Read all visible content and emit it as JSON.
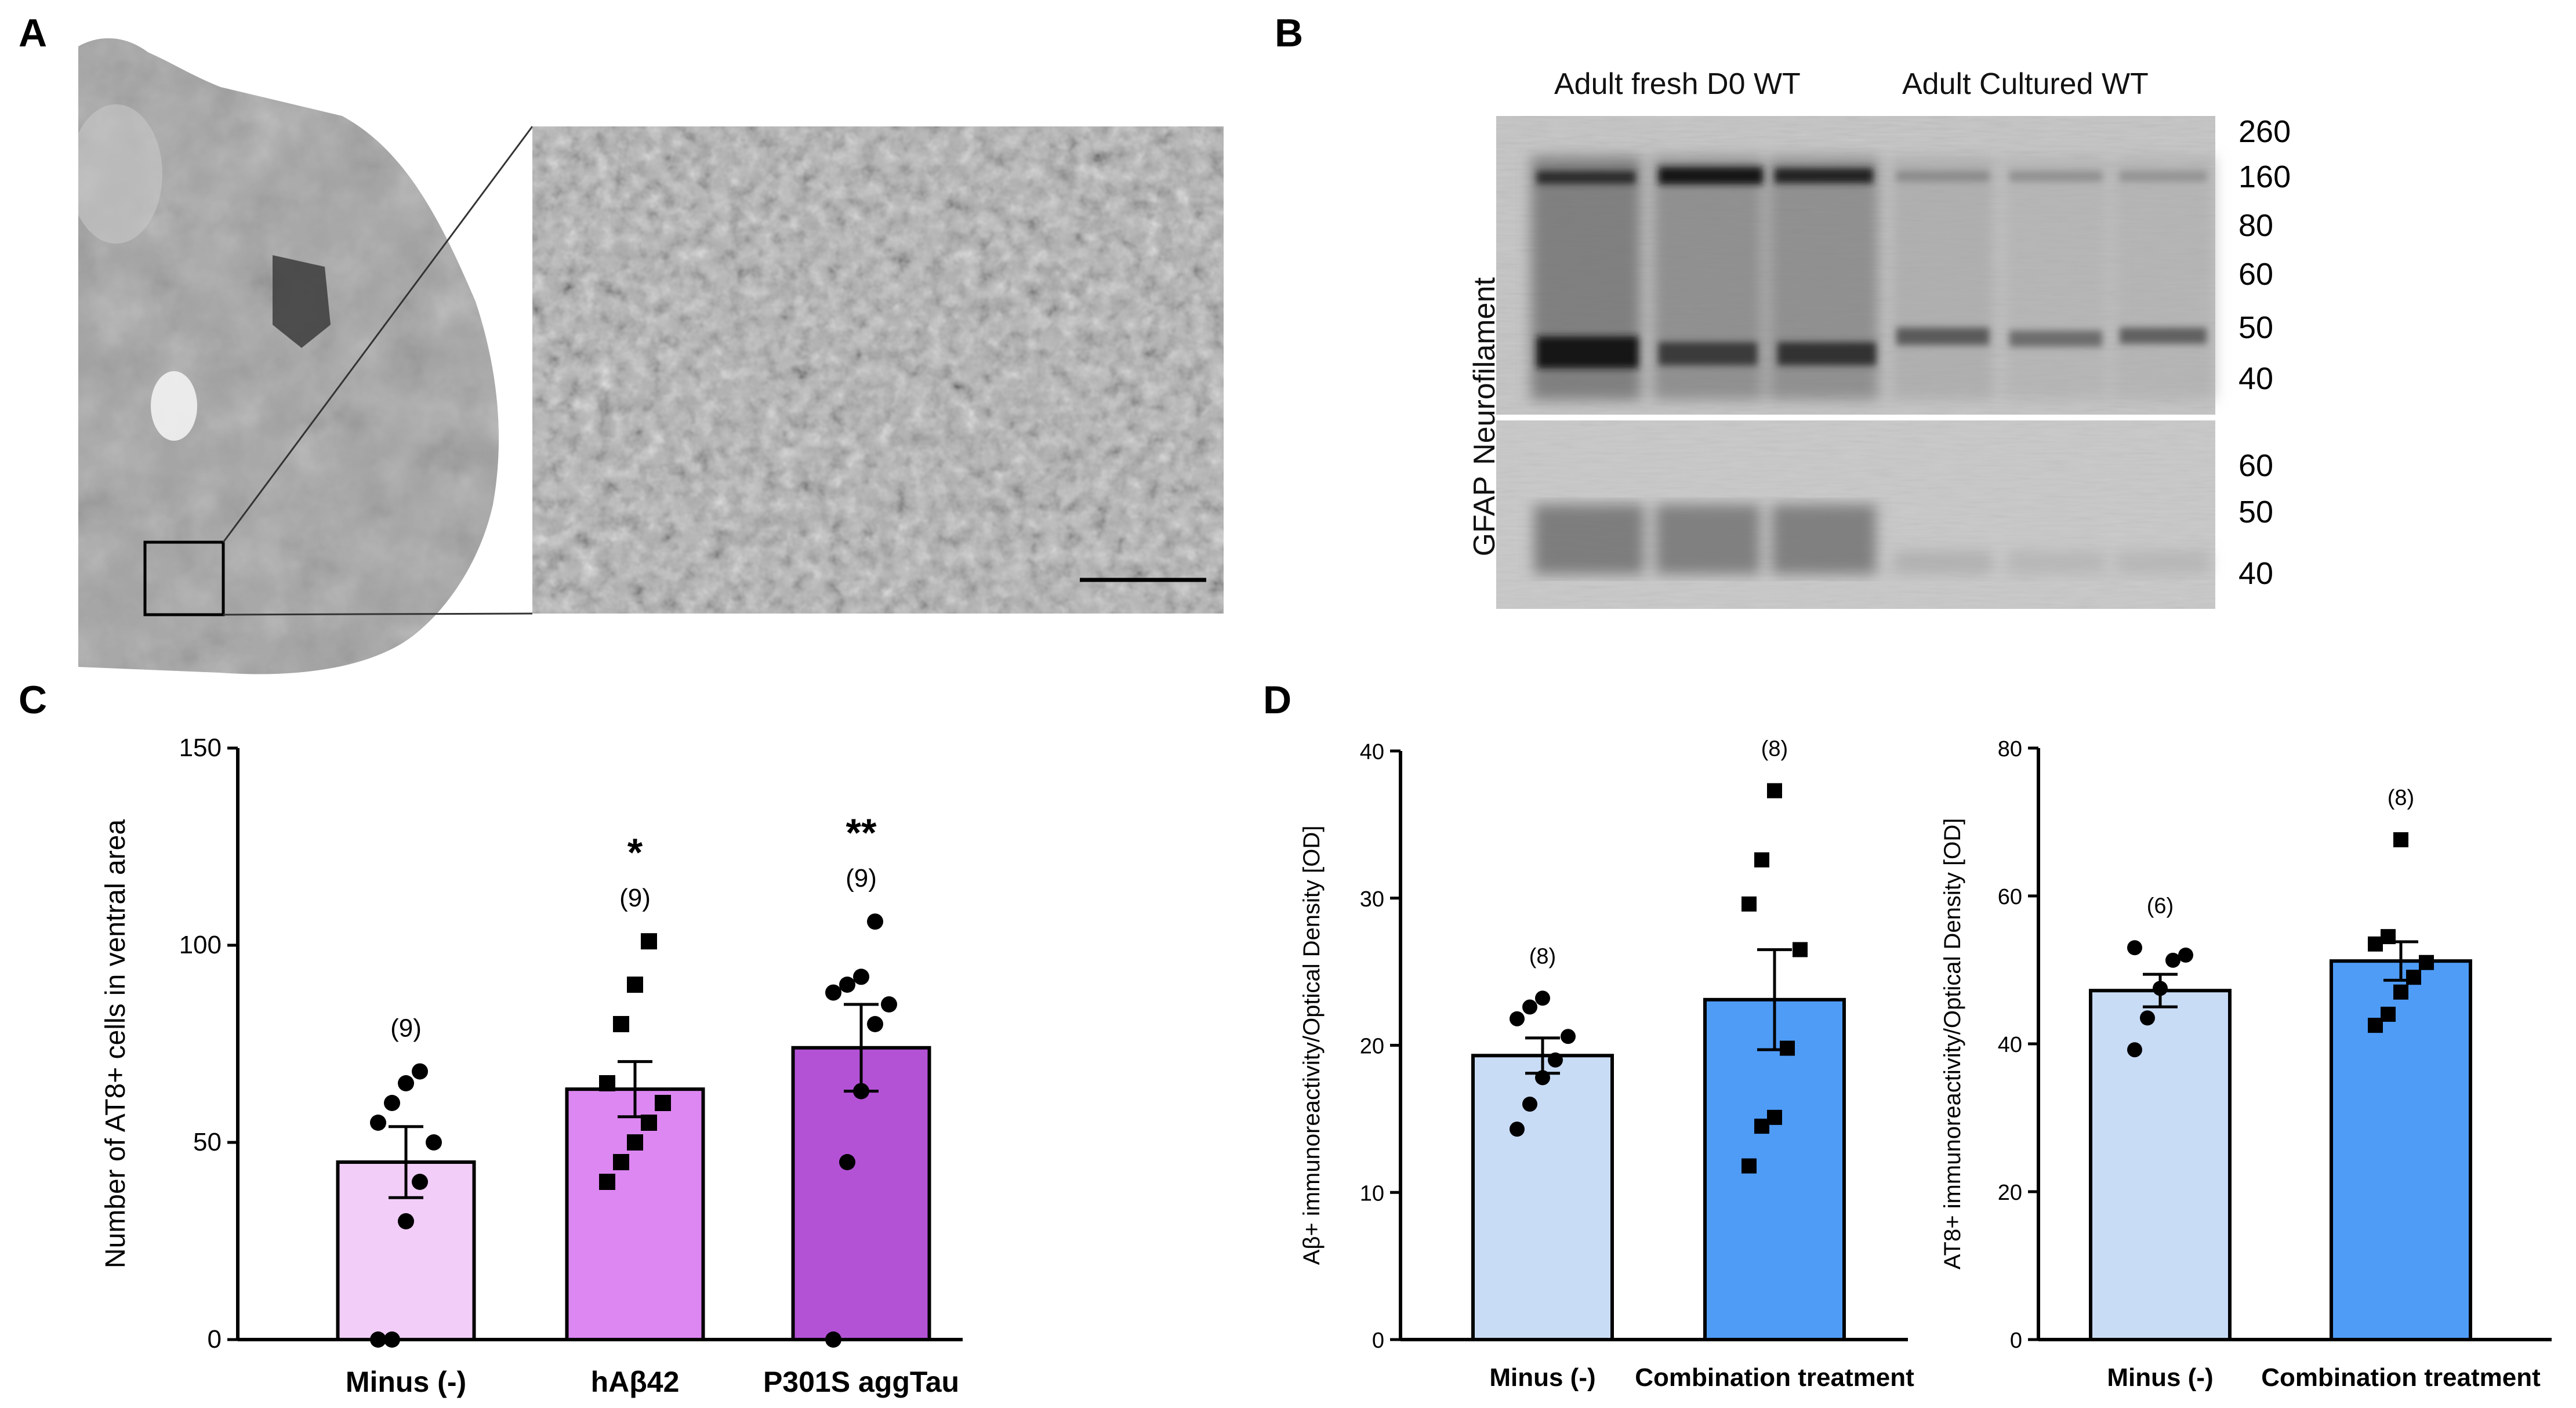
{
  "panel_labels": {
    "a": "A",
    "b": "B",
    "c": "C",
    "d": "D"
  },
  "panel_b": {
    "group_labels": [
      "Adult fresh D0 WT",
      "Adult Cultured WT"
    ],
    "blot_labels": [
      "Neurofilament",
      "GFAP"
    ],
    "neurofilament_markers": [
      "260",
      "160",
      "80",
      "60",
      "50",
      "40"
    ],
    "gfap_markers": [
      "60",
      "50",
      "40"
    ]
  },
  "chart_data": [
    {
      "id": "C",
      "type": "bar",
      "categories": [
        "Minus (-)",
        "hAβ42",
        "P301S aggTau"
      ],
      "values": [
        45,
        63.5,
        74
      ],
      "sem": [
        9,
        7,
        11
      ],
      "ylim": [
        0,
        150
      ],
      "yticks": [
        "0",
        "50",
        "100",
        "150"
      ],
      "ylabel": "Number of AT8+ cells in ventral area",
      "n_labels": [
        "(9)",
        "(9)",
        "(9)"
      ],
      "significance": [
        "",
        "*",
        "**"
      ],
      "colors": [
        "#f1cdf7",
        "#dd87f2",
        "#b452d6"
      ],
      "points": [
        {
          "marker": "circle",
          "values": [
            0,
            0,
            30,
            40,
            50,
            55,
            60,
            65,
            68
          ]
        },
        {
          "marker": "square",
          "values": [
            40,
            45,
            50,
            55,
            60,
            65,
            80,
            90,
            101
          ]
        },
        {
          "marker": "circle",
          "values": [
            0,
            45,
            63,
            80,
            85,
            88,
            90,
            92,
            106
          ]
        }
      ]
    },
    {
      "id": "D-left",
      "type": "bar",
      "categories": [
        "Minus (-)",
        "Combination treatment"
      ],
      "values": [
        19.3,
        23.1
      ],
      "sem": [
        1.2,
        3.4
      ],
      "ylim": [
        0,
        40
      ],
      "yticks": [
        "0",
        "10",
        "20",
        "30",
        "40"
      ],
      "ylabel": "Aβ+ immunoreactivity/Optical Density [OD]",
      "n_labels": [
        "(8)",
        "(8)"
      ],
      "colors": [
        "#c9dcf6",
        "#4f9cf7"
      ],
      "points": [
        {
          "marker": "circle",
          "values": [
            14.3,
            16,
            17.8,
            19,
            20.6,
            21.8,
            22.6,
            23.2
          ]
        },
        {
          "marker": "square",
          "values": [
            11.8,
            14.5,
            15.1,
            19.8,
            26.5,
            29.6,
            32.6,
            37.3
          ]
        }
      ]
    },
    {
      "id": "D-right",
      "type": "bar",
      "categories": [
        "Minus (-)",
        "Combination treatment"
      ],
      "values": [
        47.2,
        51.2
      ],
      "sem": [
        2.2,
        2.6
      ],
      "ylim": [
        0,
        80
      ],
      "yticks": [
        "0",
        "20",
        "40",
        "60",
        "80"
      ],
      "ylabel": "AT8+ immunoreactivity/Optical Density [OD]",
      "n_labels": [
        "(6)",
        "(8)"
      ],
      "colors": [
        "#c9dcf6",
        "#4f9cf7"
      ],
      "points": [
        {
          "marker": "circle",
          "values": [
            39.2,
            43.5,
            47.5,
            51.3,
            52,
            53
          ]
        },
        {
          "marker": "square",
          "values": [
            42.5,
            44,
            47,
            49,
            51,
            53.5,
            54.5,
            67.6
          ]
        }
      ]
    }
  ]
}
